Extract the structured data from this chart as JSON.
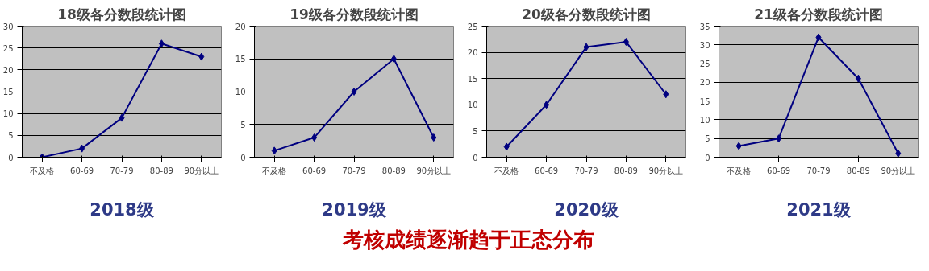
{
  "chart_data": [
    {
      "type": "line",
      "title": "18级各分数段统计图",
      "xlabel": "2018级",
      "categories": [
        "不及格",
        "60-69",
        "70-79",
        "80-89",
        "90分以上"
      ],
      "series": [
        {
          "color": "#000080",
          "values": [
            0,
            2,
            9,
            26,
            23
          ]
        }
      ],
      "ylim": [
        0,
        30
      ],
      "yticks": [
        0,
        5,
        10,
        15,
        20,
        25,
        30
      ],
      "grid": "y",
      "marker": "diamond",
      "line_style": "solid",
      "annotations": [
        "考核成绩逐渐趋于正态分布"
      ]
    },
    {
      "type": "line",
      "title": "19级各分数段统计图",
      "xlabel": "2019级",
      "categories": [
        "不及格",
        "60-69",
        "70-79",
        "80-89",
        "90分以上"
      ],
      "series": [
        {
          "color": "#000080",
          "values": [
            1,
            3,
            10,
            15,
            3
          ]
        }
      ],
      "ylim": [
        0,
        20
      ],
      "yticks": [
        0,
        5,
        10,
        15,
        20
      ],
      "grid": "y",
      "marker": "diamond",
      "line_style": "solid"
    },
    {
      "type": "line",
      "title": "20级各分数段统计图",
      "xlabel": "2020级",
      "categories": [
        "不及格",
        "60-69",
        "70-79",
        "80-89",
        "90分以上"
      ],
      "series": [
        {
          "color": "#000080",
          "values": [
            2,
            10,
            21,
            22,
            12
          ]
        }
      ],
      "ylim": [
        0,
        25
      ],
      "yticks": [
        0,
        5,
        10,
        15,
        20,
        25
      ],
      "grid": "y",
      "marker": "diamond",
      "line_style": "solid"
    },
    {
      "type": "line",
      "title": "21级各分数段统计图",
      "xlabel": "2021级",
      "categories": [
        "不及格",
        "60-69",
        "70-79",
        "80-89",
        "90分以上"
      ],
      "series": [
        {
          "color": "#000080",
          "values": [
            3,
            5,
            32,
            21,
            1
          ]
        }
      ],
      "ylim": [
        0,
        35
      ],
      "yticks": [
        0,
        5,
        10,
        15,
        20,
        25,
        30,
        35
      ],
      "grid": "y",
      "marker": "diamond",
      "line_style": "solid"
    }
  ]
}
